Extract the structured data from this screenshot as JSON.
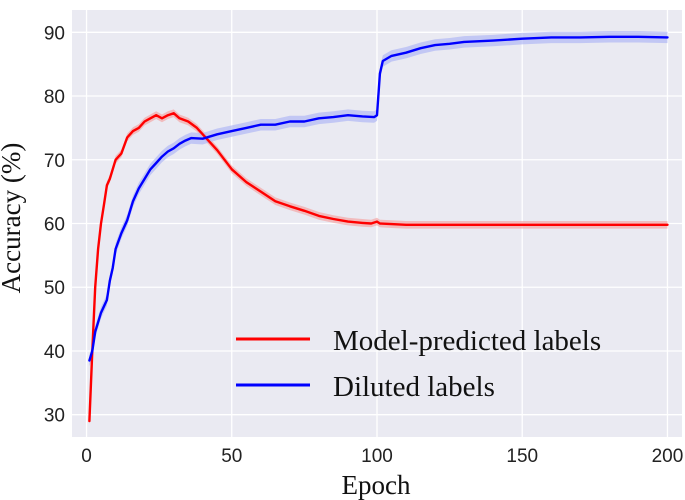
{
  "chart_data": {
    "type": "line",
    "title": "",
    "xlabel": "Epoch",
    "ylabel": "Accuracy (%)",
    "xlim": [
      -5,
      205
    ],
    "ylim": [
      26.5,
      93.5
    ],
    "xticks": [
      0,
      50,
      100,
      150,
      200
    ],
    "yticks": [
      30,
      40,
      50,
      60,
      70,
      80,
      90
    ],
    "xtick_labels": [
      "0",
      "50",
      "100",
      "150",
      "200"
    ],
    "ytick_labels": [
      "30",
      "40",
      "50",
      "60",
      "70",
      "80",
      "90"
    ],
    "grid": true,
    "background_color": "#eaeaf2",
    "legend_placement": "lower-right",
    "series": [
      {
        "name": "Model-predicted labels",
        "color": "#ff0000",
        "band_color": "#f4a6a6",
        "x": [
          1,
          2,
          3,
          4,
          5,
          6,
          7,
          8,
          10,
          12,
          14,
          16,
          18,
          20,
          22,
          24,
          26,
          28,
          30,
          32,
          35,
          38,
          40,
          45,
          50,
          55,
          60,
          65,
          70,
          75,
          80,
          85,
          90,
          95,
          98,
          100,
          101,
          105,
          110,
          120,
          130,
          150,
          170,
          200
        ],
        "y": [
          29,
          40,
          50,
          56,
          60,
          63,
          66,
          67,
          70,
          71,
          73.5,
          74.5,
          75,
          76,
          76.5,
          77,
          76.5,
          77,
          77.3,
          76.5,
          76,
          75,
          74,
          71.5,
          68.5,
          66.5,
          65,
          63.5,
          62.7,
          62,
          61.2,
          60.7,
          60.3,
          60.1,
          60,
          60.3,
          60,
          59.9,
          59.8,
          59.8,
          59.8,
          59.8,
          59.8,
          59.8
        ]
      },
      {
        "name": "Diluted labels",
        "color": "#0000ff",
        "band_color": "#b0b8f5",
        "x": [
          1,
          2,
          3,
          5,
          7,
          8,
          9,
          10,
          12,
          14,
          16,
          18,
          20,
          22,
          24,
          26,
          28,
          30,
          32,
          34,
          36,
          40,
          45,
          50,
          55,
          60,
          65,
          70,
          75,
          80,
          85,
          90,
          95,
          99,
          100,
          101,
          102,
          105,
          110,
          115,
          120,
          125,
          130,
          140,
          150,
          160,
          170,
          180,
          190,
          200
        ],
        "y": [
          38.5,
          40,
          43,
          46,
          48,
          51,
          53,
          56,
          58.5,
          60.5,
          63.5,
          65.5,
          67,
          68.5,
          69.5,
          70.5,
          71.3,
          71.8,
          72.5,
          73,
          73.4,
          73.3,
          74,
          74.5,
          75,
          75.5,
          75.5,
          76,
          76,
          76.5,
          76.7,
          77,
          76.8,
          76.7,
          77,
          83.5,
          85.5,
          86.3,
          86.8,
          87.5,
          88,
          88.2,
          88.5,
          88.7,
          89,
          89.2,
          89.2,
          89.3,
          89.3,
          89.2
        ]
      }
    ]
  }
}
